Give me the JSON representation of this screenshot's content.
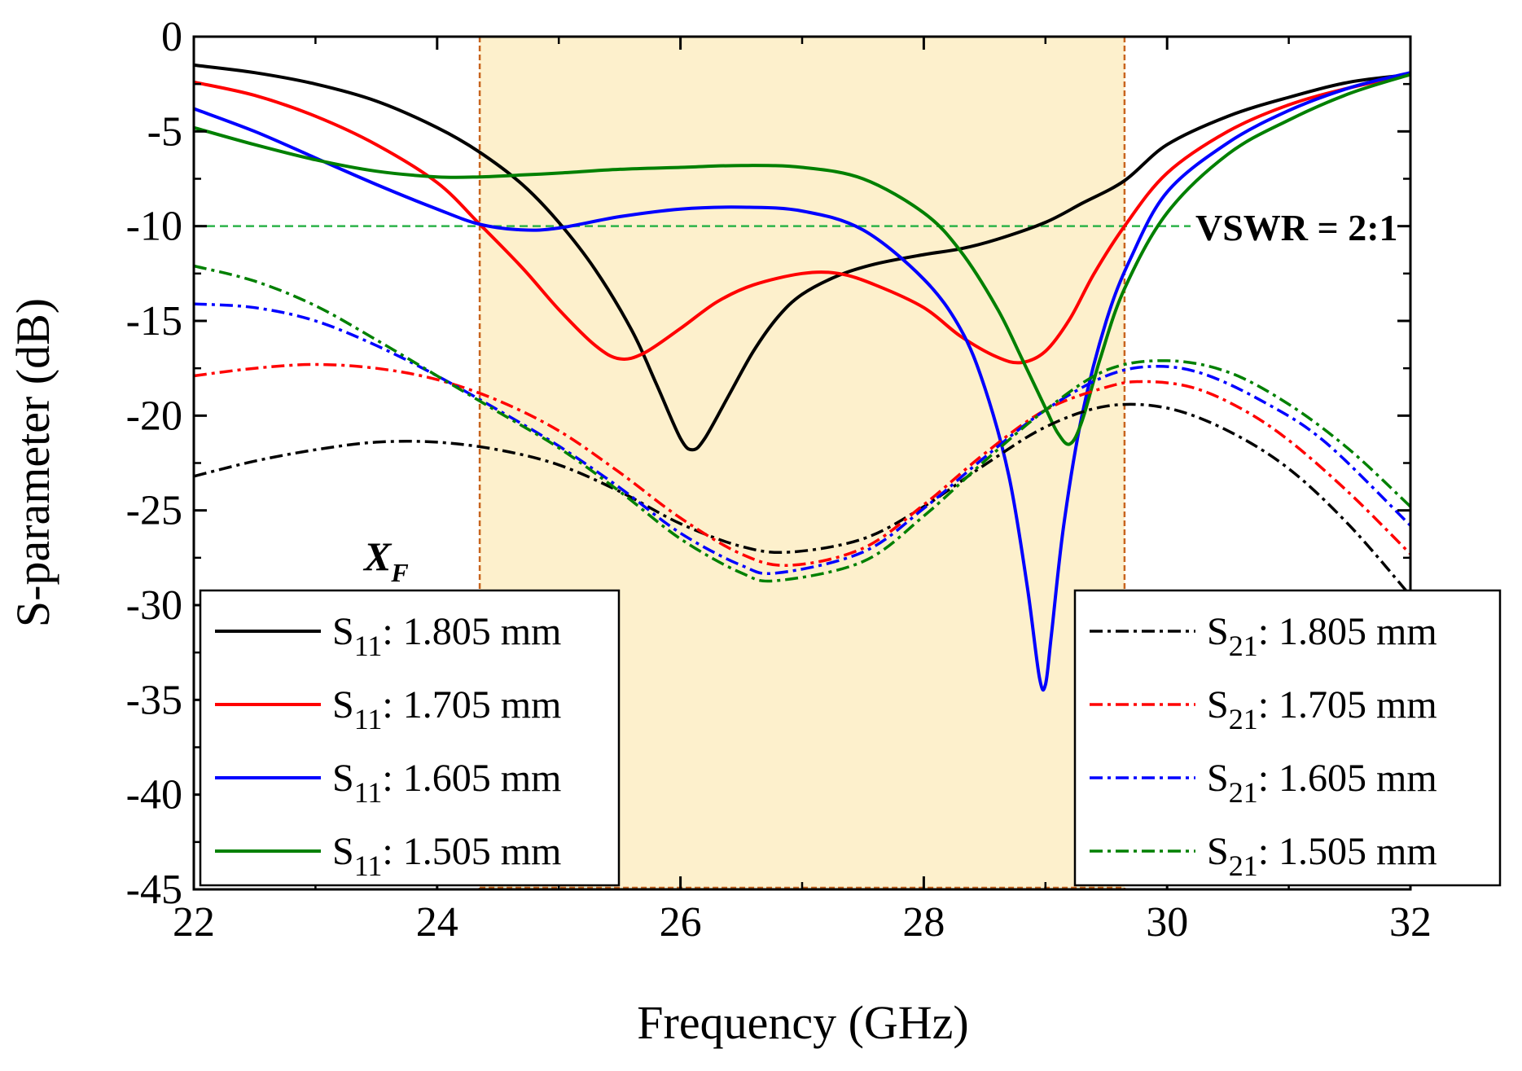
{
  "chart_data": {
    "type": "line",
    "xlabel": "Frequency (GHz)",
    "ylabel": "S-parameter (dB)",
    "xlim": [
      22,
      32
    ],
    "ylim": [
      -45,
      0
    ],
    "xticks": [
      "22",
      "24",
      "26",
      "28",
      "30",
      "32"
    ],
    "yticks": [
      "0",
      "-5",
      "-10",
      "-15",
      "-20",
      "-25",
      "-30",
      "-35",
      "-40",
      "-45"
    ],
    "highlight_band": {
      "x0": 24.35,
      "x1": 29.65,
      "fill": "#fdf0cc",
      "edge": "#c8641e"
    },
    "reference_line": {
      "y": -10,
      "label": "VSWR = 2:1",
      "color": "#2db34a"
    },
    "annotation": {
      "main": "X",
      "sub": "F"
    },
    "colors": {
      "black": "#000000",
      "red": "#ff0000",
      "blue": "#0000ff",
      "green": "#008000"
    },
    "series": [
      {
        "name": "S11: 1.805 mm",
        "prefix": "S",
        "sub": "11",
        "suffix": ": 1.805 mm",
        "color": "#000000",
        "style": "solid",
        "x": [
          22,
          22.5,
          23,
          23.5,
          24,
          24.35,
          24.7,
          25,
          25.3,
          25.6,
          25.8,
          26,
          26.1,
          26.2,
          26.4,
          26.6,
          26.8,
          27,
          27.3,
          27.6,
          28,
          28.3,
          28.6,
          29,
          29.3,
          29.65,
          30,
          30.5,
          31,
          31.5,
          32
        ],
        "y": [
          -1.5,
          -1.9,
          -2.5,
          -3.4,
          -4.8,
          -6.1,
          -7.8,
          -9.8,
          -12.3,
          -15.5,
          -18.3,
          -21.2,
          -21.8,
          -21.2,
          -18.9,
          -16.6,
          -14.8,
          -13.6,
          -12.6,
          -12,
          -11.5,
          -11.2,
          -10.7,
          -9.8,
          -8.8,
          -7.6,
          -5.7,
          -4.2,
          -3.2,
          -2.4,
          -2
        ]
      },
      {
        "name": "S11: 1.705 mm",
        "prefix": "S",
        "sub": "11",
        "suffix": ": 1.705 mm",
        "color": "#ff0000",
        "style": "solid",
        "x": [
          22,
          22.5,
          23,
          23.5,
          24,
          24.35,
          24.7,
          25,
          25.3,
          25.5,
          25.7,
          26,
          26.3,
          26.6,
          27,
          27.3,
          27.6,
          28,
          28.3,
          28.6,
          28.8,
          29,
          29.2,
          29.4,
          29.65,
          30,
          30.5,
          31,
          31.5,
          32
        ],
        "y": [
          -2.4,
          -3.1,
          -4.2,
          -5.7,
          -7.7,
          -9.9,
          -12.2,
          -14.4,
          -16.3,
          -17,
          -16.7,
          -15.4,
          -14,
          -13.1,
          -12.5,
          -12.5,
          -13.1,
          -14.3,
          -15.8,
          -16.9,
          -17.2,
          -16.6,
          -14.9,
          -12.5,
          -10,
          -7.2,
          -5,
          -3.6,
          -2.7,
          -2
        ]
      },
      {
        "name": "S11: 1.605 mm",
        "prefix": "S",
        "sub": "11",
        "suffix": ": 1.605 mm",
        "color": "#0000ff",
        "style": "solid",
        "x": [
          22,
          22.5,
          23,
          23.5,
          24,
          24.35,
          24.7,
          25,
          25.5,
          26,
          26.5,
          27,
          27.5,
          28,
          28.3,
          28.5,
          28.7,
          28.85,
          28.95,
          29,
          29.05,
          29.15,
          29.3,
          29.5,
          29.7,
          30,
          30.5,
          31,
          31.5,
          32
        ],
        "y": [
          -3.8,
          -5,
          -6.4,
          -7.8,
          -9.1,
          -9.9,
          -10.2,
          -10.1,
          -9.5,
          -9.1,
          -9,
          -9.2,
          -10.2,
          -12.8,
          -15.4,
          -18.5,
          -23.2,
          -29,
          -33.8,
          -34.2,
          -31.5,
          -25.8,
          -20,
          -15,
          -11.7,
          -8.2,
          -5.6,
          -3.9,
          -2.7,
          -1.9
        ]
      },
      {
        "name": "S11: 1.505 mm",
        "prefix": "S",
        "sub": "11",
        "suffix": ": 1.505 mm",
        "color": "#008000",
        "style": "solid",
        "x": [
          22,
          22.5,
          23,
          23.5,
          24,
          24.35,
          24.7,
          25,
          25.5,
          26,
          26.5,
          27,
          27.5,
          28,
          28.3,
          28.6,
          28.8,
          29,
          29.1,
          29.2,
          29.3,
          29.45,
          29.65,
          30,
          30.5,
          31,
          31.5,
          32
        ],
        "y": [
          -4.8,
          -5.7,
          -6.5,
          -7.1,
          -7.4,
          -7.4,
          -7.3,
          -7.2,
          -7,
          -6.9,
          -6.8,
          -6.9,
          -7.5,
          -9.3,
          -11.3,
          -14.3,
          -16.9,
          -19.6,
          -20.9,
          -21.5,
          -20.3,
          -17,
          -13.3,
          -9.3,
          -6.2,
          -4.4,
          -3,
          -2
        ]
      },
      {
        "name": "S21: 1.805 mm",
        "prefix": "S",
        "sub": "21",
        "suffix": ": 1.805 mm",
        "color": "#000000",
        "style": "dashdot",
        "x": [
          22,
          22.5,
          23,
          23.5,
          24,
          24.5,
          25,
          25.5,
          26,
          26.5,
          26.9,
          27.5,
          28,
          28.5,
          29,
          29.5,
          30,
          30.5,
          31,
          31.5,
          32
        ],
        "y": [
          -23.2,
          -22.4,
          -21.8,
          -21.4,
          -21.4,
          -21.8,
          -22.6,
          -24,
          -25.7,
          -26.9,
          -27.2,
          -26.5,
          -24.8,
          -22.6,
          -20.6,
          -19.5,
          -19.6,
          -20.8,
          -22.8,
          -25.8,
          -29.5
        ]
      },
      {
        "name": "S21: 1.705 mm",
        "prefix": "S",
        "sub": "21",
        "suffix": ": 1.705 mm",
        "color": "#ff0000",
        "style": "dashdot",
        "x": [
          22,
          22.5,
          23,
          23.5,
          24,
          24.5,
          25,
          25.5,
          26,
          26.5,
          26.9,
          27.5,
          28,
          28.5,
          29,
          29.5,
          29.8,
          30.2,
          30.6,
          31,
          31.5,
          32
        ],
        "y": [
          -17.9,
          -17.5,
          -17.3,
          -17.5,
          -18.1,
          -19.2,
          -20.8,
          -23,
          -25.4,
          -27.3,
          -27.9,
          -27,
          -24.7,
          -22,
          -19.7,
          -18.5,
          -18.2,
          -18.5,
          -19.6,
          -21.3,
          -24.1,
          -27.3
        ]
      },
      {
        "name": "S21: 1.605 mm",
        "prefix": "S",
        "sub": "21",
        "suffix": ": 1.605 mm",
        "color": "#0000ff",
        "style": "dashdot",
        "x": [
          22,
          22.5,
          23,
          23.5,
          24,
          24.5,
          25,
          25.5,
          26,
          26.5,
          26.8,
          27.5,
          28,
          28.5,
          29,
          29.5,
          29.9,
          30.3,
          30.8,
          31.3,
          32
        ],
        "y": [
          -14.1,
          -14.3,
          -15,
          -16.3,
          -17.9,
          -19.7,
          -21.6,
          -23.8,
          -26.2,
          -27.9,
          -28.3,
          -27.2,
          -24.9,
          -22.2,
          -19.7,
          -17.9,
          -17.4,
          -17.8,
          -19.3,
          -21.4,
          -25.8
        ]
      },
      {
        "name": "S21: 1.505 mm",
        "prefix": "S",
        "sub": "21",
        "suffix": ": 1.505 mm",
        "color": "#008000",
        "style": "dashdot",
        "x": [
          22,
          22.5,
          23,
          23.5,
          24,
          24.5,
          25,
          25.5,
          26,
          26.5,
          26.8,
          27.5,
          28,
          28.5,
          29,
          29.5,
          30,
          30.5,
          31,
          31.5,
          32
        ],
        "y": [
          -12.1,
          -12.9,
          -14.2,
          -16,
          -17.9,
          -19.8,
          -21.7,
          -24,
          -26.5,
          -28.3,
          -28.7,
          -27.7,
          -25.3,
          -22.4,
          -19.7,
          -17.6,
          -17.1,
          -17.7,
          -19.4,
          -21.8,
          -24.8
        ]
      }
    ]
  }
}
